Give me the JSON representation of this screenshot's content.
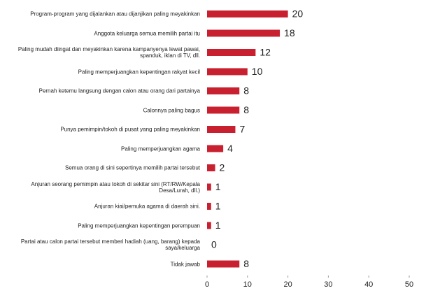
{
  "chart_data": {
    "type": "bar",
    "orientation": "horizontal",
    "categories": [
      "Program-program yang dijalankan atau dijanjikan paling meyakinkan",
      "Anggota keluarga semua memilih partai itu",
      "Paling mudah diingat dan meyakinkan karena kampanyenya lewat pawai, spanduk, iklan di TV, dll.",
      "Paling memperjuangkan kepentingan rakyat kecil",
      "Pernah ketemu langsung dengan calon atau orang dari partainya",
      "Calonnya paling bagus",
      "Punya pemimpin/tokoh di pusat yang paling meyakinkan",
      "Paling memperjuangkan agama",
      "Semua orang di sini sepertinya memilih partai tersebut",
      "Anjuran seorang pemimpin atau tokoh di sekitar sini (RT/RW/Kepala Desa/Lurah, dll.)",
      "Anjuran kiai/pemuka agama di daerah sini.",
      "Paling memperjuangkan kepentingan perempuan",
      "Partai atau calon partai tersebut memberi hadiah (uang, barang) kepada saya/keluarga",
      "Tidak jawab"
    ],
    "values": [
      20,
      18,
      12,
      10,
      8,
      8,
      7,
      4,
      2,
      1,
      1,
      1,
      0,
      8
    ],
    "color": "#c8202f",
    "xlim": [
      0,
      50
    ],
    "xticks": [
      0,
      10,
      20,
      30,
      40,
      50
    ]
  }
}
